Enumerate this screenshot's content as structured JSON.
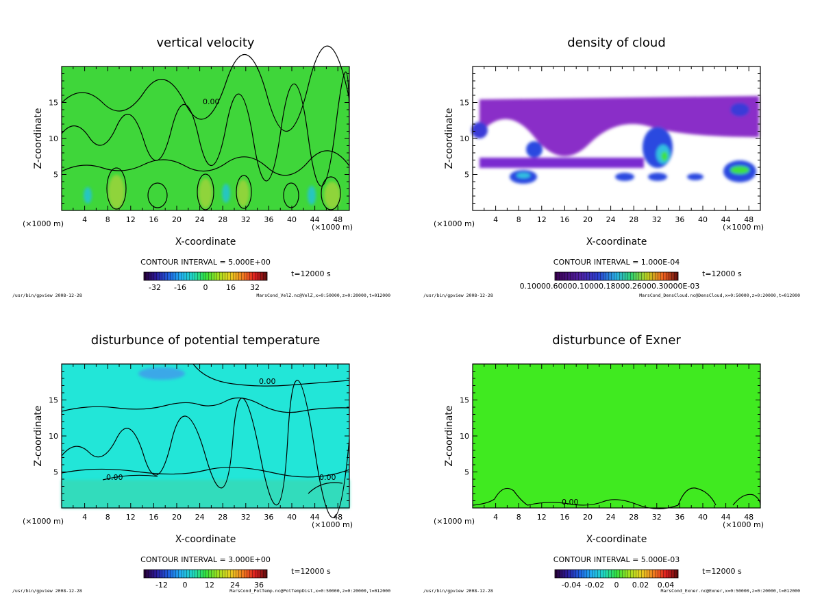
{
  "chart_data": [
    {
      "type": "heatmap",
      "title": "vertical velocity",
      "xlabel": "X-coordinate",
      "ylabel": "Z-coordinate",
      "x_unit": "(×1000 m)",
      "x_ticks": [
        4,
        8,
        12,
        16,
        20,
        24,
        28,
        32,
        36,
        40,
        44,
        48
      ],
      "y_ticks": [
        5,
        10,
        15
      ],
      "xlim": [
        0,
        50
      ],
      "ylim": [
        0,
        20
      ],
      "contour_label": "0.00",
      "contour_interval": "CONTOUR INTERVAL = 5.000E+00",
      "time": "t=12000 s",
      "colorbar_ticks": [
        "-32",
        "-16",
        "0",
        "16",
        "32"
      ],
      "footer_left": "/usr/bin/gpview  2008-12-28",
      "footer_right": "MarsCond_VelZ.nc@VelZ,x=0:50000,z=0:20000,t=012000"
    },
    {
      "type": "heatmap",
      "title": "density of cloud",
      "xlabel": "X-coordinate",
      "ylabel": "Z-coordinate",
      "x_unit": "(×1000 m)",
      "x_ticks": [
        4,
        8,
        12,
        16,
        20,
        24,
        28,
        32,
        36,
        40,
        44,
        48
      ],
      "y_ticks": [
        5,
        10,
        15
      ],
      "xlim": [
        0,
        50
      ],
      "ylim": [
        0,
        20
      ],
      "contour_interval": "CONTOUR INTERVAL = 1.000E-04",
      "time": "t=12000 s",
      "colorbar_label": "0.10000.60000.10000.18000.26000.30000E-03",
      "footer_left": "/usr/bin/gpview  2008-12-28",
      "footer_right": "MarsCond_DensCloud.nc@DensCloud,x=0:50000,z=0:20000,t=012000"
    },
    {
      "type": "heatmap",
      "title": "disturbunce of potential temperature",
      "xlabel": "X-coordinate",
      "ylabel": "Z-coordinate",
      "x_unit": "(×1000 m)",
      "x_ticks": [
        4,
        8,
        12,
        16,
        20,
        24,
        28,
        32,
        36,
        40,
        44,
        48
      ],
      "y_ticks": [
        5,
        10,
        15
      ],
      "xlim": [
        0,
        50
      ],
      "ylim": [
        0,
        20
      ],
      "contour_label": "0.00",
      "contour_interval": "CONTOUR INTERVAL = 3.000E+00",
      "time": "t=12000 s",
      "colorbar_ticks": [
        "-12",
        "0",
        "12",
        "24",
        "36"
      ],
      "footer_left": "/usr/bin/gpview  2008-12-28",
      "footer_right": "MarsCond_PotTemp.nc@PotTempDist,x=0:50000,z=0:20000,t=012000"
    },
    {
      "type": "heatmap",
      "title": "disturbunce of Exner",
      "xlabel": "X-coordinate",
      "ylabel": "Z-coordinate",
      "x_unit": "(×1000 m)",
      "x_ticks": [
        4,
        8,
        12,
        16,
        20,
        24,
        28,
        32,
        36,
        40,
        44,
        48
      ],
      "y_ticks": [
        5,
        10,
        15
      ],
      "xlim": [
        0,
        50
      ],
      "ylim": [
        0,
        20
      ],
      "contour_label": "0.00",
      "contour_interval": "CONTOUR INTERVAL = 5.000E-03",
      "time": "t=12000 s",
      "colorbar_ticks": [
        "-0.04",
        "-0.02",
        "0",
        "0.02",
        "0.04"
      ],
      "footer_left": "/usr/bin/gpview  2008-12-28",
      "footer_right": "MarsCond_Exner.nc@Exner,x=0:50000,z=0:20000,t=012000"
    }
  ]
}
